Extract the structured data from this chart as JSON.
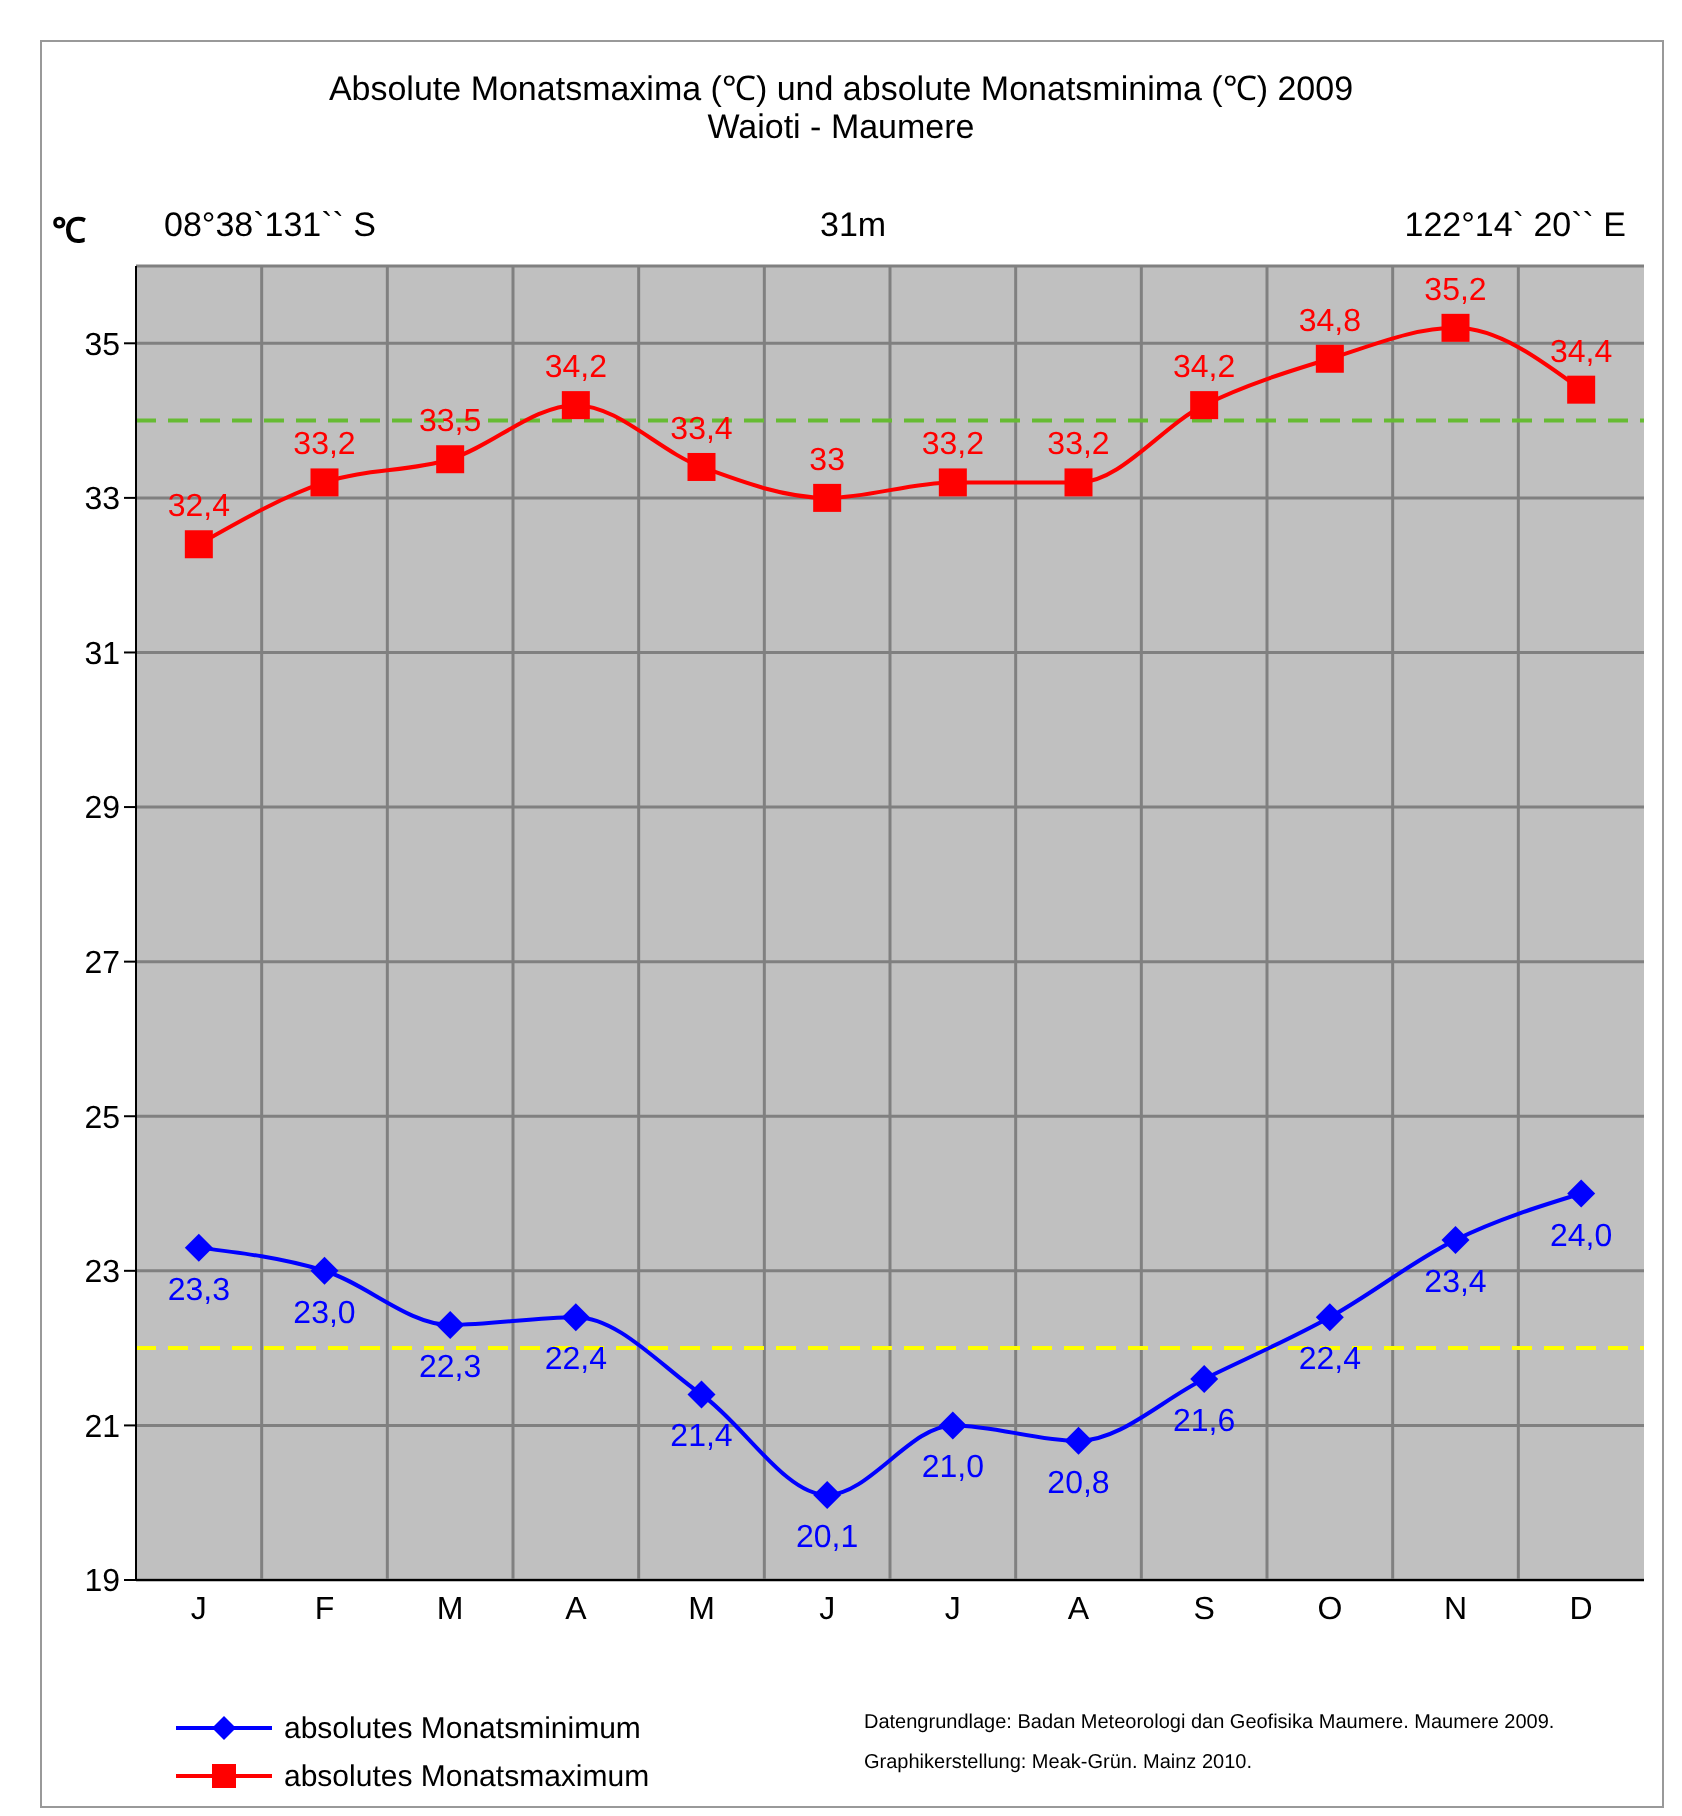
{
  "chart_data": {
    "type": "line",
    "title": "Absolute Monatsmaxima (℃) und absolute Monatsminima (℃) 2009",
    "subtitle": "Waioti - Maumere",
    "ylabel": "℃",
    "annotations": [
      "08°38`131`` S",
      "31m",
      "122°14` 20`` E",
      "Datengrundlage: Badan Meteorologi dan Geofisika Maumere. Maumere 2009.",
      "Graphikerstellung: Meak-Grün. Mainz 2010."
    ],
    "categories": [
      "J",
      "F",
      "M",
      "A",
      "M",
      "J",
      "J",
      "A",
      "S",
      "O",
      "N",
      "D"
    ],
    "series": [
      {
        "name": "absolutes Monatsminimum",
        "color": "#0000ff",
        "marker": "diamond",
        "values": [
          23.3,
          23.0,
          22.3,
          22.4,
          21.4,
          20.1,
          21.0,
          20.8,
          21.6,
          22.4,
          23.4,
          24.0
        ],
        "value_labels": [
          "23,3",
          "23,0",
          "22,3",
          "22,4",
          "21,4",
          "20,1",
          "21,0",
          "20,8",
          "21,6",
          "22,4",
          "23,4",
          "24,0"
        ]
      },
      {
        "name": "absolutes Monatsmaximum",
        "color": "#ff0000",
        "marker": "square",
        "values": [
          32.4,
          33.2,
          33.5,
          34.2,
          33.4,
          33.0,
          33.2,
          33.2,
          34.2,
          34.8,
          35.2,
          34.4
        ],
        "value_labels": [
          "32,4",
          "33,2",
          "33,5",
          "34,2",
          "33,4",
          "33",
          "33,2",
          "33,2",
          "34,2",
          "34,8",
          "35,2",
          "34,4"
        ]
      }
    ],
    "ylim": [
      19,
      36
    ],
    "yticks": [
      19,
      21,
      23,
      25,
      27,
      29,
      31,
      33,
      35
    ],
    "grid": true,
    "legend": "bottom left",
    "line_style": "solid",
    "ref_lines": [
      {
        "axis": "y",
        "value": 34,
        "color": "#66bb33",
        "line_style": "dashed"
      },
      {
        "axis": "y",
        "value": 22,
        "color": "#ffff00",
        "line_style": "dashed"
      }
    ]
  }
}
